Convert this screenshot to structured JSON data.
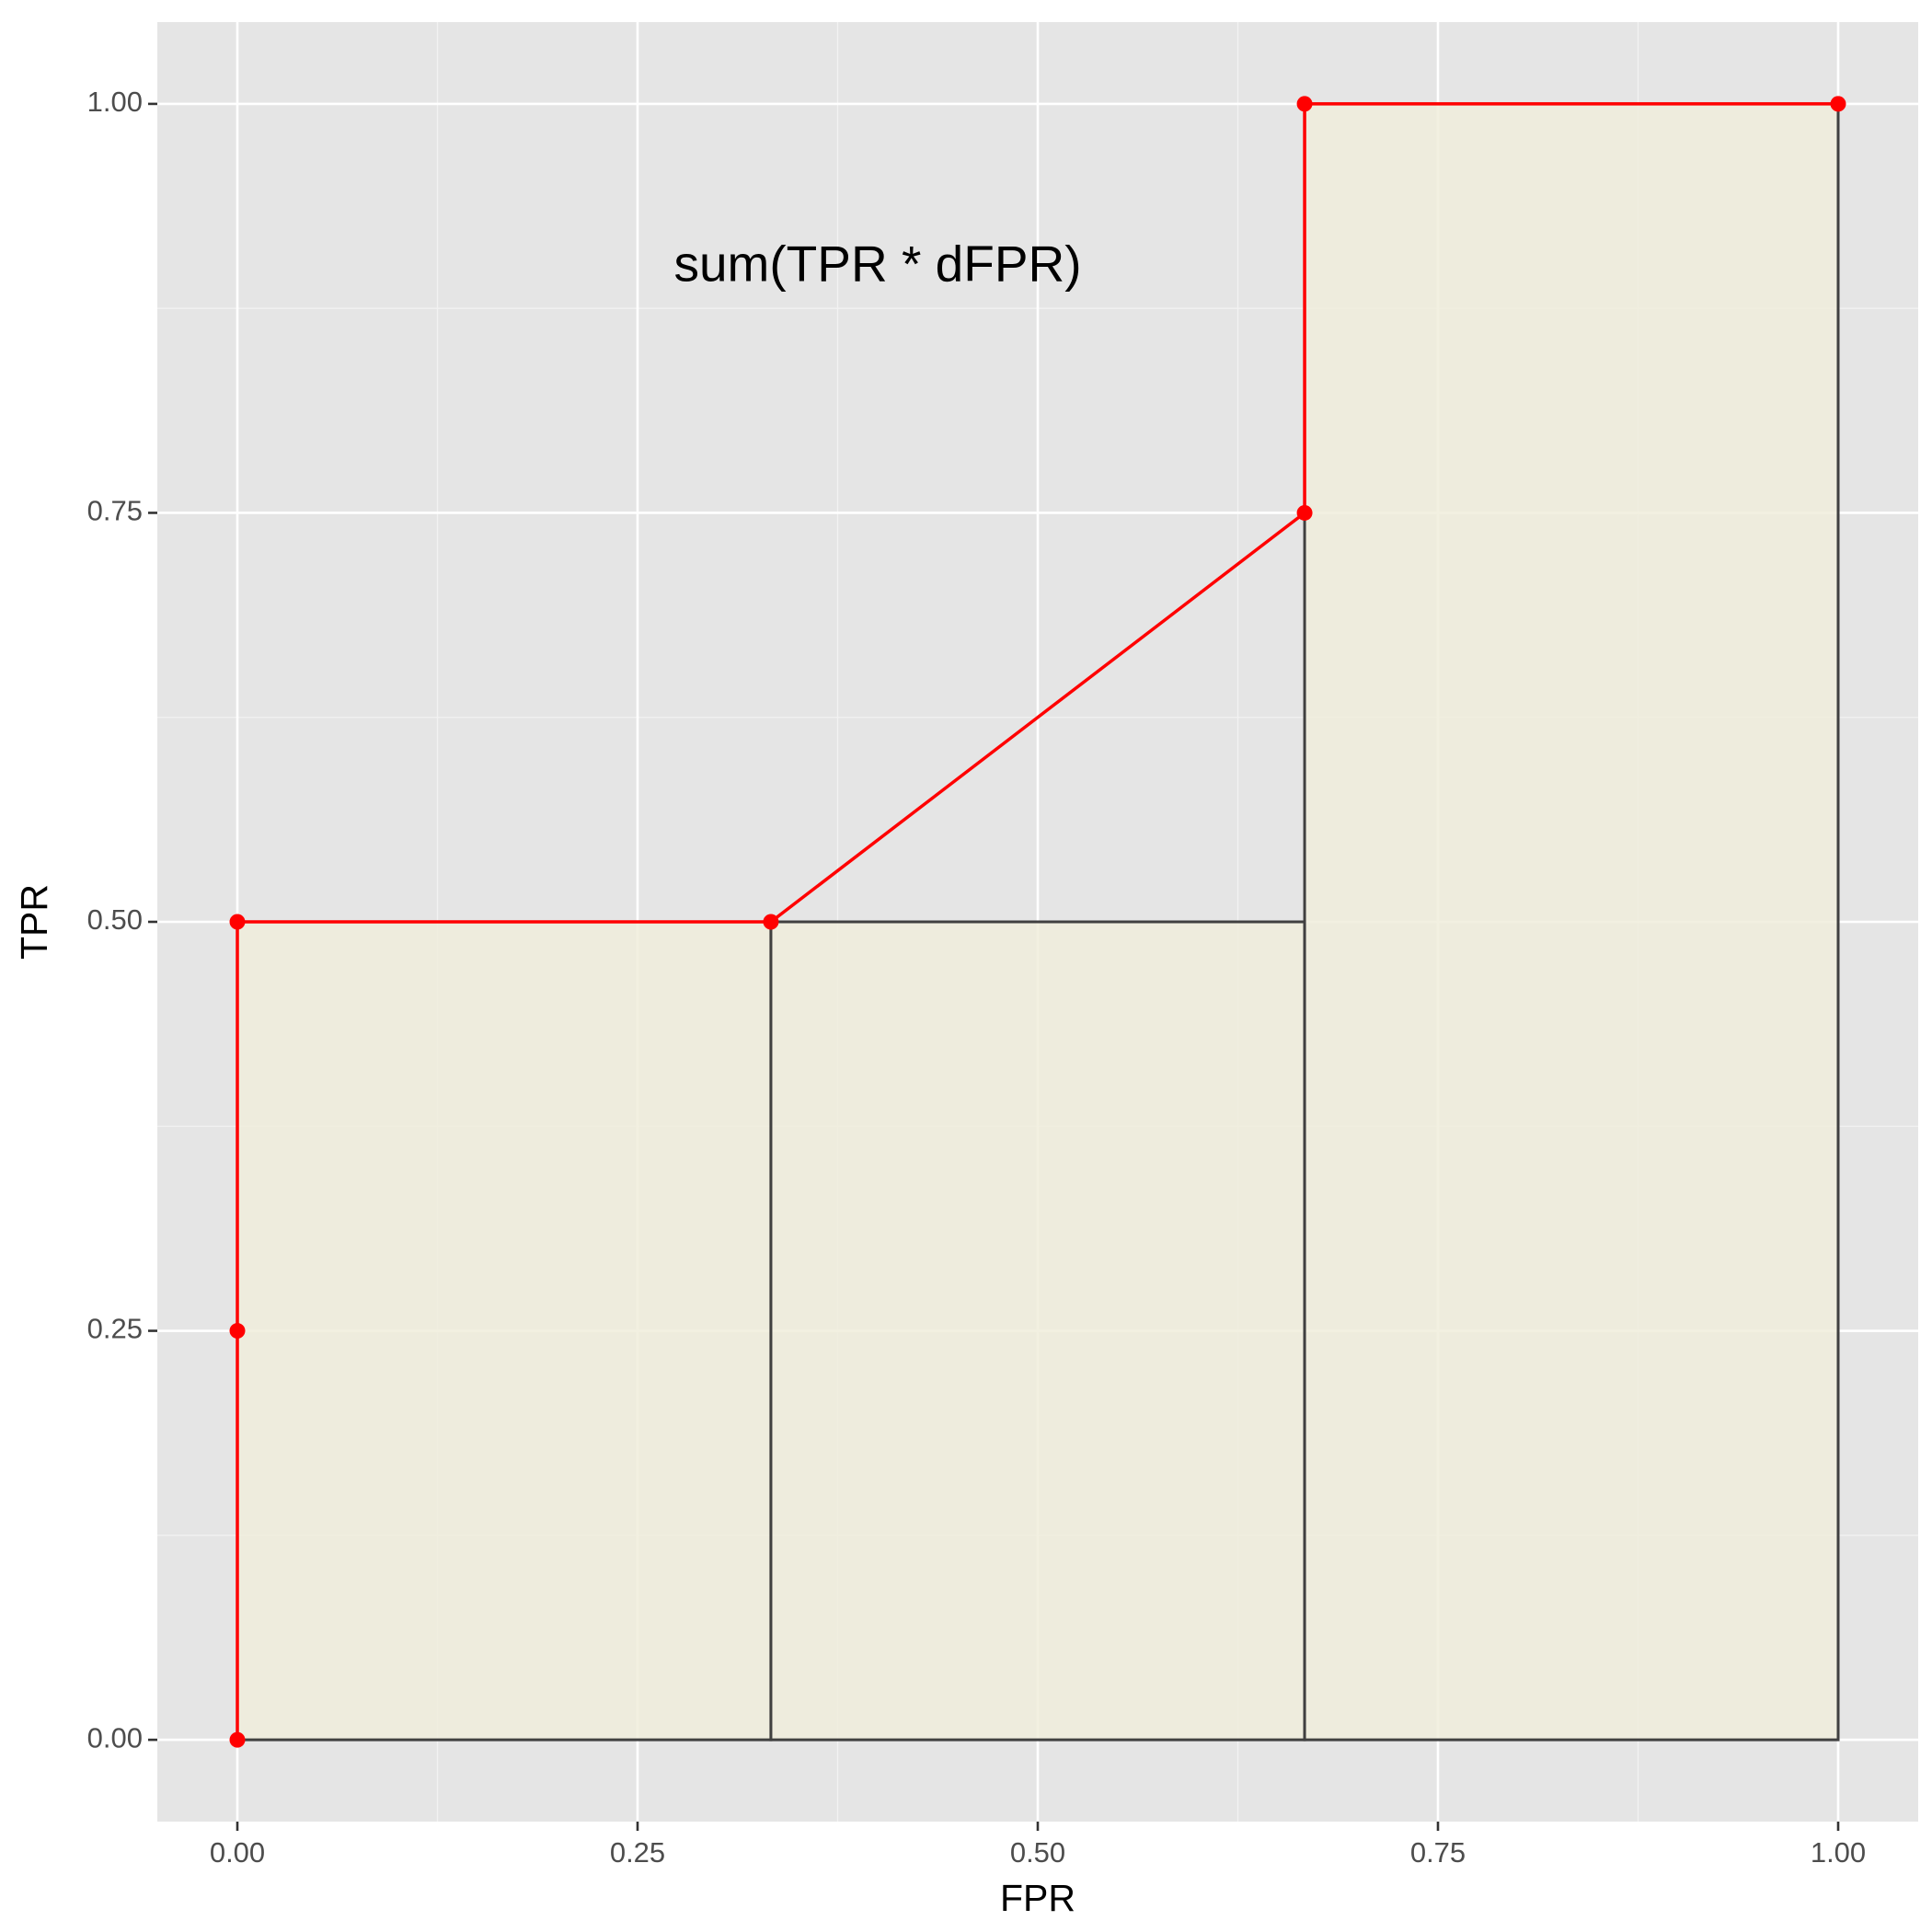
{
  "chart_data": {
    "type": "line",
    "annotation": "sum(TPR * dFPR)",
    "x_label": "FPR",
    "y_label": "TPR",
    "xlim": [
      -0.05,
      1.05
    ],
    "ylim": [
      -0.05,
      1.05
    ],
    "xticks": [
      {
        "value": 0,
        "label": "0.00"
      },
      {
        "value": 0.25,
        "label": "0.25"
      },
      {
        "value": 0.5,
        "label": "0.50"
      },
      {
        "value": 0.75,
        "label": "0.75"
      },
      {
        "value": 1,
        "label": "1.00"
      }
    ],
    "yticks": [
      {
        "value": 0,
        "label": "0.00"
      },
      {
        "value": 0.25,
        "label": "0.25"
      },
      {
        "value": 0.5,
        "label": "0.50"
      },
      {
        "value": 0.75,
        "label": "0.75"
      },
      {
        "value": 1,
        "label": "1.00"
      }
    ],
    "minor_grid": [
      0.125,
      0.375,
      0.625,
      0.875
    ],
    "grid": true,
    "bars": {
      "x_left": [
        0,
        0.3333,
        0.6667
      ],
      "x_right": [
        0.3333,
        0.6667,
        1
      ],
      "values": [
        0.5,
        0.5,
        1
      ],
      "color": "#f0eddc",
      "edge_color": "#404040"
    },
    "series": [
      {
        "color": "#ff0000",
        "x": [
          0,
          0,
          0,
          0.3333,
          0.6667,
          0.6667,
          1
        ],
        "values": [
          0,
          0.25,
          0.5,
          0.5,
          0.75,
          1,
          1
        ]
      }
    ]
  }
}
